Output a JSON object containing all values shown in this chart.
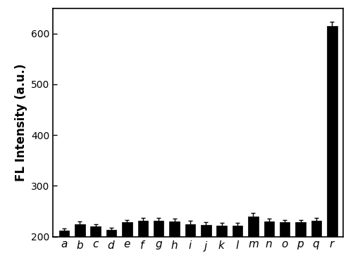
{
  "categories": [
    "a",
    "b",
    "c",
    "d",
    "e",
    "f",
    "g",
    "h",
    "i",
    "j",
    "k",
    "l",
    "m",
    "n",
    "o",
    "p",
    "q",
    "r"
  ],
  "values": [
    212,
    224,
    220,
    213,
    228,
    232,
    232,
    230,
    225,
    223,
    222,
    222,
    240,
    230,
    228,
    228,
    232,
    615
  ],
  "errors": [
    4,
    6,
    5,
    4,
    5,
    5,
    5,
    5,
    6,
    5,
    5,
    5,
    6,
    5,
    5,
    5,
    5,
    8
  ],
  "bar_color": "#000000",
  "edge_color": "#000000",
  "ylabel": "FL Intensity (a.u.)",
  "ylim": [
    200,
    650
  ],
  "yticks": [
    200,
    300,
    400,
    500,
    600
  ],
  "background_color": "#ffffff",
  "bar_width": 0.65,
  "ylabel_fontsize": 12,
  "tick_fontsize": 10,
  "xtick_fontsize": 11
}
